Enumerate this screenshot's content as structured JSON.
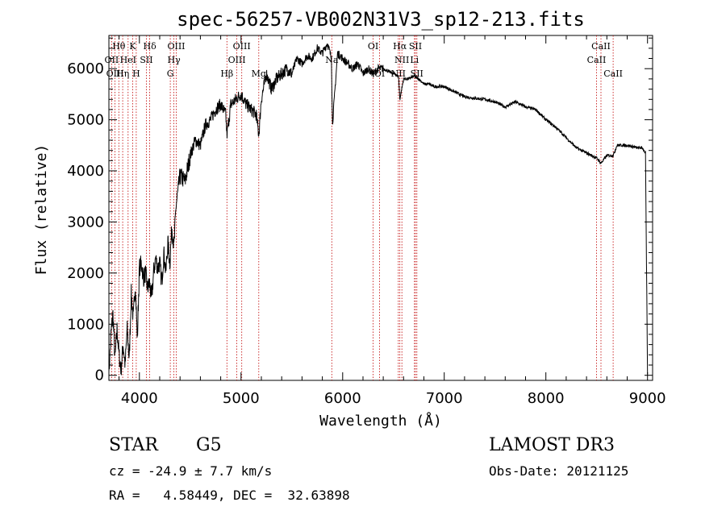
{
  "chart_data": {
    "type": "line",
    "title": "spec-56257-VB002N31V3_sp12-213.fits",
    "xlabel": "Wavelength (Å)",
    "ylabel": "Flux (relative)",
    "xlim": [
      3700,
      9050
    ],
    "ylim": [
      -100,
      6650
    ],
    "xticks": [
      4000,
      5000,
      6000,
      7000,
      8000,
      9000
    ],
    "yticks": [
      0,
      1000,
      2000,
      3000,
      4000,
      5000,
      6000
    ],
    "grid": false,
    "series": [
      {
        "name": "spectrum",
        "x": [
          3700,
          3720,
          3740,
          3760,
          3780,
          3800,
          3820,
          3840,
          3860,
          3880,
          3900,
          3920,
          3940,
          3960,
          3980,
          4000,
          4020,
          4040,
          4060,
          4080,
          4100,
          4120,
          4140,
          4160,
          4180,
          4200,
          4220,
          4240,
          4260,
          4280,
          4300,
          4320,
          4340,
          4360,
          4380,
          4400,
          4450,
          4500,
          4550,
          4600,
          4650,
          4700,
          4750,
          4800,
          4850,
          4861,
          4900,
          4950,
          5000,
          5050,
          5100,
          5150,
          5175,
          5200,
          5250,
          5300,
          5350,
          5400,
          5450,
          5500,
          5550,
          5600,
          5650,
          5700,
          5750,
          5800,
          5850,
          5890,
          5900,
          5950,
          6000,
          6050,
          6100,
          6150,
          6200,
          6250,
          6300,
          6350,
          6400,
          6450,
          6500,
          6550,
          6563,
          6600,
          6650,
          6700,
          6750,
          6800,
          6850,
          6900,
          6950,
          7000,
          7100,
          7200,
          7300,
          7400,
          7500,
          7600,
          7700,
          7800,
          7900,
          8000,
          8100,
          8200,
          8300,
          8400,
          8500,
          8542,
          8600,
          8662,
          8700,
          8800,
          8900,
          8950,
          8980,
          9000
        ],
        "y": [
          0,
          800,
          1200,
          300,
          900,
          400,
          100,
          600,
          200,
          900,
          300,
          1600,
          1100,
          1800,
          700,
          2100,
          2200,
          1900,
          2000,
          1700,
          1800,
          1500,
          2000,
          2300,
          2100,
          2200,
          1800,
          2400,
          2000,
          2600,
          2200,
          2900,
          2500,
          3300,
          3600,
          3900,
          3800,
          4300,
          4600,
          4500,
          4900,
          5000,
          5200,
          5300,
          5100,
          4700,
          5300,
          5400,
          5500,
          5300,
          5200,
          5100,
          4700,
          5400,
          5900,
          5600,
          5800,
          5900,
          6000,
          5900,
          6200,
          6100,
          6250,
          6200,
          6400,
          6300,
          6500,
          6200,
          4900,
          6300,
          6200,
          6100,
          6000,
          6100,
          5900,
          6000,
          5900,
          6000,
          6000,
          5950,
          5900,
          5850,
          5400,
          5800,
          5800,
          5850,
          5800,
          5700,
          5700,
          5650,
          5650,
          5650,
          5550,
          5450,
          5420,
          5400,
          5350,
          5250,
          5350,
          5250,
          5200,
          5000,
          4850,
          4650,
          4450,
          4350,
          4250,
          4150,
          4300,
          4300,
          4500,
          4500,
          4450,
          4450,
          4350,
          0
        ]
      }
    ],
    "lines": [
      {
        "name": "Hθ",
        "wl": 3798
      },
      {
        "name": "OII",
        "wl": 3727
      },
      {
        "name": "OIII",
        "wl": 3760
      },
      {
        "name": "Hη",
        "wl": 3836
      },
      {
        "name": "HeI",
        "wl": 3889
      },
      {
        "name": "K",
        "wl": 3934
      },
      {
        "name": "H",
        "wl": 3969
      },
      {
        "name": "SII",
        "wl": 4069
      },
      {
        "name": "Hδ",
        "wl": 4102
      },
      {
        "name": "G",
        "wl": 4304
      },
      {
        "name": "Hγ",
        "wl": 4340
      },
      {
        "name": "OIII",
        "wl": 4363
      },
      {
        "name": "Hβ",
        "wl": 4861
      },
      {
        "name": "OIII",
        "wl": 4959
      },
      {
        "name": "OIII",
        "wl": 5007
      },
      {
        "name": "Mg",
        "wl": 5175
      },
      {
        "name": "Na",
        "wl": 5893
      },
      {
        "name": "OI",
        "wl": 6300
      },
      {
        "name": "OI",
        "wl": 6364
      },
      {
        "name": "NII",
        "wl": 6548
      },
      {
        "name": "Hα",
        "wl": 6563
      },
      {
        "name": "NII",
        "wl": 6583
      },
      {
        "name": "Li",
        "wl": 6707
      },
      {
        "name": "SII",
        "wl": 6716
      },
      {
        "name": "SII",
        "wl": 6731
      },
      {
        "name": "CaII",
        "wl": 8498
      },
      {
        "name": "CaII",
        "wl": 8542
      },
      {
        "name": "CaII",
        "wl": 8662
      }
    ],
    "line_labels": [
      {
        "text": "Hθ",
        "wl": 3798,
        "row": 0
      },
      {
        "text": "K",
        "wl": 3934,
        "row": 0
      },
      {
        "text": "Hδ",
        "wl": 4102,
        "row": 0
      },
      {
        "text": "OIII",
        "wl": 4363,
        "row": 0
      },
      {
        "text": "OIII",
        "wl": 5007,
        "row": 0
      },
      {
        "text": "OI",
        "wl": 6300,
        "row": 0
      },
      {
        "text": "Hα",
        "wl": 6563,
        "row": 0
      },
      {
        "text": "SII",
        "wl": 6716,
        "row": 0
      },
      {
        "text": "CaII",
        "wl": 8542,
        "row": 0
      },
      {
        "text": "OII",
        "wl": 3727,
        "row": 1
      },
      {
        "text": "HeI",
        "wl": 3889,
        "row": 1
      },
      {
        "text": "SII",
        "wl": 4069,
        "row": 1
      },
      {
        "text": "Hγ",
        "wl": 4340,
        "row": 1
      },
      {
        "text": "OIII",
        "wl": 4959,
        "row": 1
      },
      {
        "text": "Na",
        "wl": 5893,
        "row": 1
      },
      {
        "text": "NII",
        "wl": 6583,
        "row": 1
      },
      {
        "text": "Li",
        "wl": 6707,
        "row": 1
      },
      {
        "text": "CaII",
        "wl": 8498,
        "row": 1
      },
      {
        "text": "OIII",
        "wl": 3760,
        "row": 2
      },
      {
        "text": "Hη",
        "wl": 3836,
        "row": 2
      },
      {
        "text": "H",
        "wl": 3969,
        "row": 2
      },
      {
        "text": "G",
        "wl": 4304,
        "row": 2
      },
      {
        "text": "Hβ",
        "wl": 4861,
        "row": 2
      },
      {
        "text": "Mg",
        "wl": 5175,
        "row": 2
      },
      {
        "text": "OI",
        "wl": 6364,
        "row": 2
      },
      {
        "text": "NII",
        "wl": 6548,
        "row": 2
      },
      {
        "text": "SII",
        "wl": 6731,
        "row": 2
      },
      {
        "text": "CaII",
        "wl": 8662,
        "row": 2
      }
    ]
  },
  "info": {
    "class": "STAR",
    "subclass": "G5",
    "survey": "LAMOST DR3",
    "redshift": "cz = -24.9 ± 7.7 km/s",
    "obs_date": "Obs-Date: 20121125",
    "coords": "RA =   4.58449, DEC =  32.63898"
  }
}
